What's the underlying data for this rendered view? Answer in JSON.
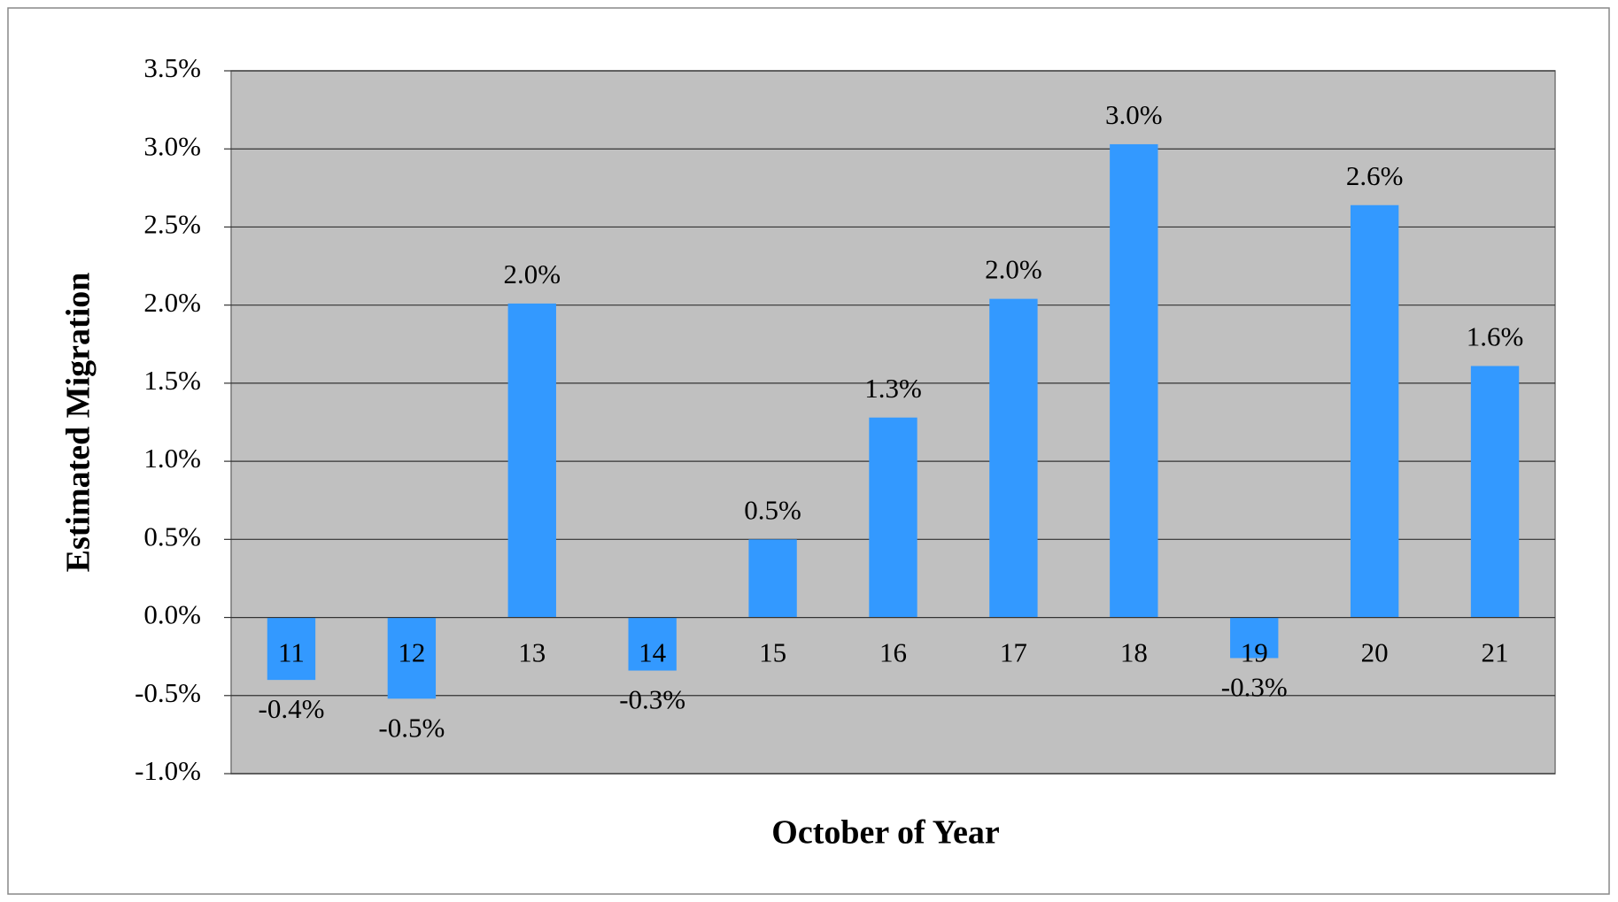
{
  "chart_data": {
    "type": "bar",
    "x_label": "October of Year",
    "y_label": "Estimated Migration",
    "categories": [
      "11",
      "12",
      "13",
      "14",
      "15",
      "16",
      "17",
      "18",
      "19",
      "20",
      "21"
    ],
    "values": [
      -0.4,
      -0.52,
      2.01,
      -0.34,
      0.5,
      1.28,
      2.04,
      3.03,
      -0.26,
      2.64,
      1.61
    ],
    "value_labels": [
      "-0.4%",
      "-0.5%",
      "2.0%",
      "-0.3%",
      "0.5%",
      "1.3%",
      "2.0%",
      "3.0%",
      "-0.3%",
      "2.6%",
      "1.6%"
    ],
    "color": "#3399ff",
    "ylim": [
      -1.0,
      3.5
    ],
    "yticks": [
      {
        "value": -1.0,
        "label": "-1.0%"
      },
      {
        "value": -0.5,
        "label": "-0.5%"
      },
      {
        "value": 0,
        "label": "0.0%"
      },
      {
        "value": 0.5,
        "label": "0.5%"
      },
      {
        "value": 1.0,
        "label": "1.0%"
      },
      {
        "value": 1.5,
        "label": "1.5%"
      },
      {
        "value": 2.0,
        "label": "2.0%"
      },
      {
        "value": 2.5,
        "label": "2.5%"
      },
      {
        "value": 3.0,
        "label": "3.0%"
      },
      {
        "value": 3.5,
        "label": "3.5%"
      }
    ],
    "grid": true
  }
}
